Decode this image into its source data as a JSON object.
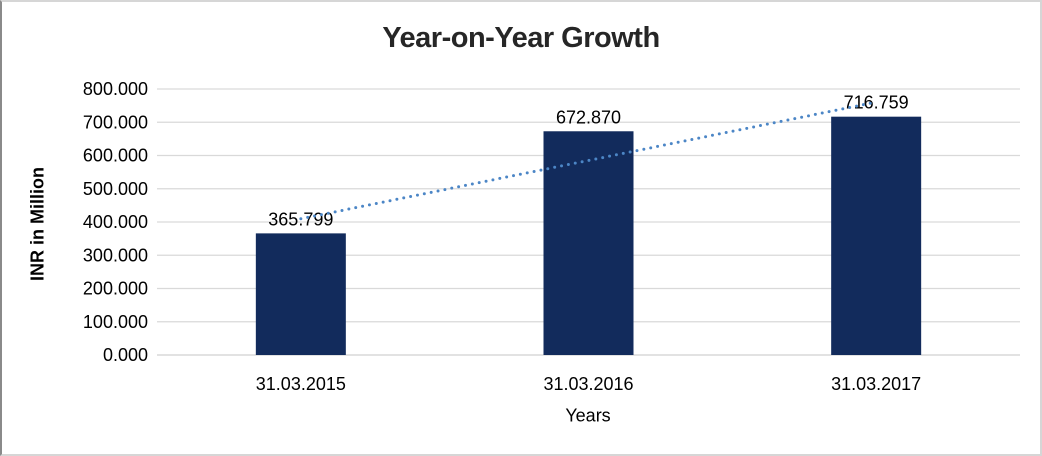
{
  "chart_data": {
    "type": "bar",
    "title": "Year-on-Year Growth",
    "categories": [
      "31.03.2015",
      "31.03.2016",
      "31.03.2017"
    ],
    "values": [
      365.799,
      672.87,
      716.759
    ],
    "data_labels": [
      "365.799",
      "672.870",
      "716.759"
    ],
    "xlabel": "Years",
    "ylabel": "INR in Million",
    "ylim": [
      0,
      800
    ],
    "ytick_step": 100,
    "ytick_labels_top_to_bottom": [
      "800.000",
      "700.000",
      "600.000",
      "500.000",
      "400.000",
      "300.000",
      "200.000",
      "100.000",
      "0.000"
    ],
    "grid": true,
    "legend": "none",
    "trendline": {
      "type": "linear",
      "style": "dotted"
    }
  },
  "colors": {
    "bar": "#122B5C",
    "trendline": "#4C86C6",
    "gridline": "#D9D9D9",
    "axis_line": "#D0D0D0",
    "title_text": "#262626",
    "label_text": "#000000"
  }
}
